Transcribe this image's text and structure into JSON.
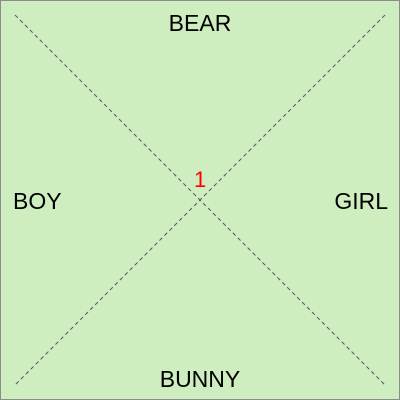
{
  "board": {
    "top_label": "BEAR",
    "bottom_label": "BUNNY",
    "left_label": "BOY",
    "right_label": "GIRL",
    "center_number": "1"
  },
  "colors": {
    "background": "#cfeec0",
    "border": "#8c8c8c",
    "diagonal_line": "#555555",
    "center_number": "#ff0000",
    "label_text": "#000000"
  }
}
